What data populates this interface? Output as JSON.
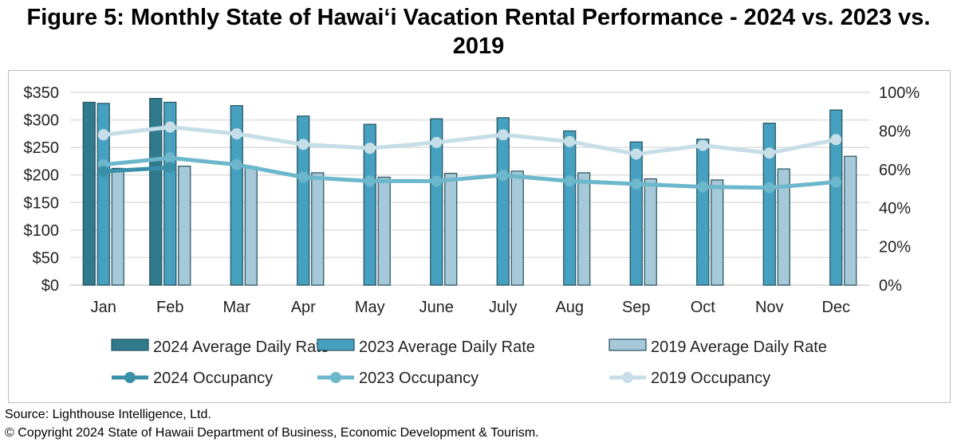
{
  "title": "Figure 5: Monthly State of Hawaiʻi Vacation Rental Performance - 2024 vs. 2023 vs. 2019",
  "footer": {
    "source": "Source: Lighthouse Intelligence, Ltd.",
    "copyright": "© Copyright 2024 State of Hawaii Department of Business, Economic Development & Tourism."
  },
  "chart_data": {
    "type": "bar",
    "title": "Figure 5: Monthly State of Hawaiʻi Vacation Rental Performance - 2024 vs. 2023 vs. 2019",
    "categories": [
      "Jan",
      "Feb",
      "Mar",
      "Apr",
      "May",
      "June",
      "July",
      "Aug",
      "Sep",
      "Oct",
      "Nov",
      "Dec"
    ],
    "ylim": [
      0,
      350
    ],
    "y_ticks": [
      "$0",
      "$50",
      "$100",
      "$150",
      "$200",
      "$250",
      "$300",
      "$350"
    ],
    "y2lim": [
      0,
      100
    ],
    "y2_ticks": [
      "0%",
      "20%",
      "40%",
      "60%",
      "80%",
      "100%"
    ],
    "grid": true,
    "legend_position": "bottom",
    "bar_series": [
      {
        "name": "2024 Average Daily Rate",
        "color": "#2f7a8d",
        "values": [
          332,
          339,
          null,
          null,
          null,
          null,
          null,
          null,
          null,
          null,
          null,
          null
        ]
      },
      {
        "name": "2023 Average Daily Rate",
        "color": "#46a1c0",
        "values": [
          330,
          332,
          326,
          307,
          292,
          302,
          304,
          280,
          260,
          265,
          294,
          318
        ]
      },
      {
        "name": "2019 Average Daily Rate",
        "color": "#a5c9d9",
        "values": [
          212,
          216,
          215,
          204,
          196,
          203,
          207,
          204,
          193,
          191,
          211,
          234
        ]
      }
    ],
    "line_series": [
      {
        "name": "2024 Occupancy",
        "color": "#3a90a9",
        "values": [
          59,
          61,
          null,
          null,
          null,
          null,
          null,
          null,
          null,
          null,
          null,
          null
        ]
      },
      {
        "name": "2023 Occupancy",
        "color": "#6cb7cc",
        "values": [
          62.5,
          66,
          62.5,
          56,
          54,
          54,
          57,
          54,
          52.5,
          51,
          50.5,
          53.5
        ]
      },
      {
        "name": "2019 Occupancy",
        "color": "#c6dee7",
        "values": [
          78,
          82,
          78.5,
          73,
          71,
          74,
          78,
          74.5,
          68,
          72.5,
          68.5,
          75.5
        ]
      }
    ]
  }
}
